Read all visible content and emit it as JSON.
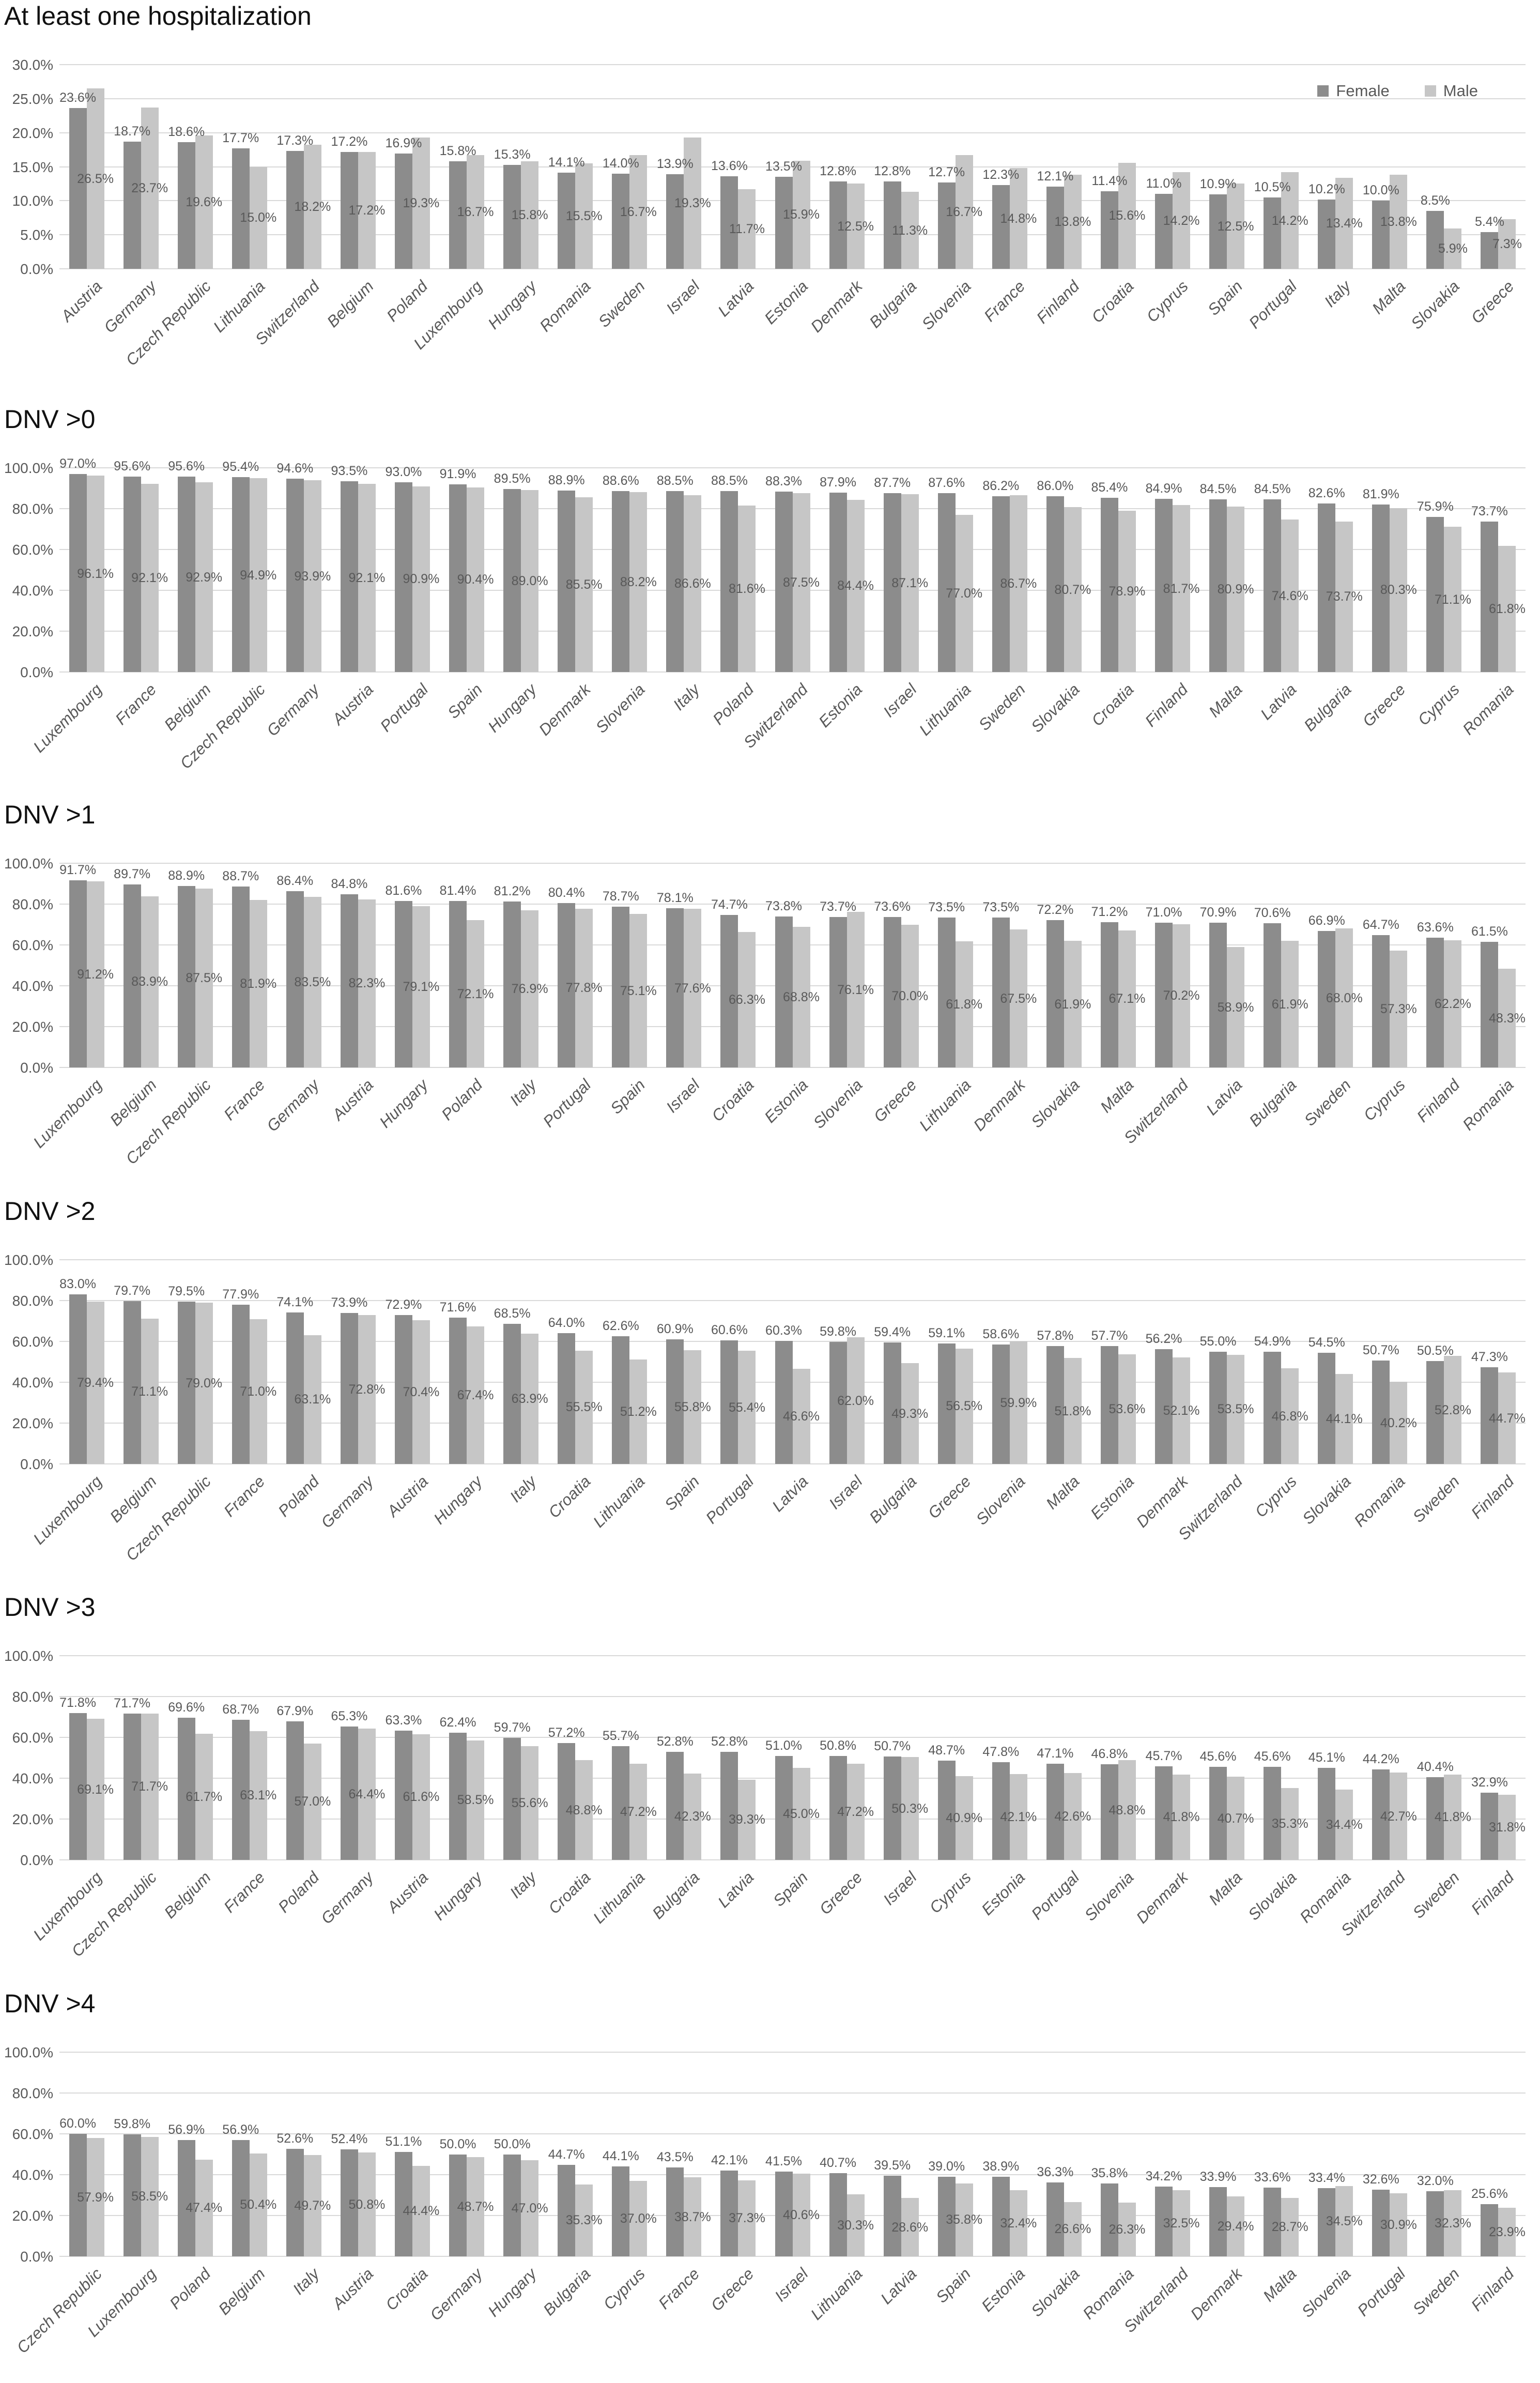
{
  "legend": {
    "female": "Female",
    "male": "Male"
  },
  "colors": {
    "female_bar": "#8c8c8c",
    "male_bar": "#c6c6c6",
    "gridline": "#d9d9d9",
    "axis_text": "#595959",
    "title_text": "#111111"
  },
  "chart_data": [
    {
      "type": "bar",
      "title": "At least one hospitalization",
      "ymax": 30,
      "ystep": 5,
      "yticks": [
        "0.0%",
        "5.0%",
        "10.0%",
        "15.0%",
        "20.0%",
        "25.0%",
        "30.0%"
      ],
      "legend_position": "top-right",
      "categories": [
        "Austria",
        "Germany",
        "Czech Republic",
        "Lithuania",
        "Switzerland",
        "Belgium",
        "Poland",
        "Luxembourg",
        "Hungary",
        "Romania",
        "Sweden",
        "Israel",
        "Latvia",
        "Estonia",
        "Denmark",
        "Bulgaria",
        "Slovenia",
        "France",
        "Finland",
        "Croatia",
        "Cyprus",
        "Spain",
        "Portugal",
        "Italy",
        "Malta",
        "Slovakia",
        "Greece"
      ],
      "series": [
        {
          "name": "Female",
          "values": [
            23.6,
            18.7,
            18.6,
            17.7,
            17.3,
            17.2,
            16.9,
            15.8,
            15.3,
            14.1,
            14.0,
            13.9,
            13.6,
            13.5,
            12.8,
            12.8,
            12.7,
            12.3,
            12.1,
            11.4,
            11.0,
            10.9,
            10.5,
            10.2,
            10.0,
            8.5,
            5.4
          ]
        },
        {
          "name": "Male",
          "values": [
            26.5,
            23.7,
            19.6,
            15.0,
            18.2,
            17.2,
            19.3,
            16.7,
            15.8,
            15.5,
            16.7,
            19.3,
            11.7,
            15.9,
            12.5,
            11.3,
            16.7,
            14.8,
            13.8,
            15.6,
            14.2,
            12.5,
            14.2,
            13.4,
            13.8,
            5.9,
            7.3
          ]
        }
      ]
    },
    {
      "type": "bar",
      "title": "DNV >0",
      "ymax": 100,
      "ystep": 20,
      "yticks": [
        "0.0%",
        "20.0%",
        "40.0%",
        "60.0%",
        "80.0%",
        "100.0%"
      ],
      "categories": [
        "Luxembourg",
        "France",
        "Belgium",
        "Czech Republic",
        "Germany",
        "Austria",
        "Portugal",
        "Spain",
        "Hungary",
        "Denmark",
        "Slovenia",
        "Italy",
        "Poland",
        "Switzerland",
        "Estonia",
        "Israel",
        "Lithuania",
        "Sweden",
        "Slovakia",
        "Croatia",
        "Finland",
        "Malta",
        "Latvia",
        "Bulgaria",
        "Greece",
        "Cyprus",
        "Romania"
      ],
      "series": [
        {
          "name": "Female",
          "values": [
            97.0,
            95.6,
            95.6,
            95.4,
            94.6,
            93.5,
            93.0,
            91.9,
            89.5,
            88.9,
            88.6,
            88.5,
            88.5,
            88.3,
            87.9,
            87.7,
            87.6,
            86.2,
            86.0,
            85.4,
            84.9,
            84.5,
            84.5,
            82.6,
            81.9,
            75.9,
            73.7
          ]
        },
        {
          "name": "Male",
          "values": [
            96.1,
            92.1,
            92.9,
            94.9,
            93.9,
            92.1,
            90.9,
            90.4,
            89.0,
            85.5,
            88.2,
            86.6,
            81.6,
            87.5,
            84.4,
            87.1,
            77.0,
            86.7,
            80.7,
            78.9,
            81.7,
            80.9,
            74.6,
            73.7,
            80.3,
            71.1,
            61.8
          ]
        }
      ]
    },
    {
      "type": "bar",
      "title": "DNV >1",
      "ymax": 100,
      "ystep": 20,
      "yticks": [
        "0.0%",
        "20.0%",
        "40.0%",
        "60.0%",
        "80.0%",
        "100.0%"
      ],
      "categories": [
        "Luxembourg",
        "Belgium",
        "Czech Republic",
        "France",
        "Germany",
        "Austria",
        "Hungary",
        "Poland",
        "Italy",
        "Portugal",
        "Spain",
        "Israel",
        "Croatia",
        "Estonia",
        "Slovenia",
        "Greece",
        "Lithuania",
        "Denmark",
        "Slovakia",
        "Malta",
        "Switzerland",
        "Latvia",
        "Bulgaria",
        "Sweden",
        "Cyprus",
        "Finland",
        "Romania"
      ],
      "series": [
        {
          "name": "Female",
          "values": [
            91.7,
            89.7,
            88.9,
            88.7,
            86.4,
            84.8,
            81.6,
            81.4,
            81.2,
            80.4,
            78.7,
            78.1,
            74.7,
            73.8,
            73.7,
            73.6,
            73.5,
            73.5,
            72.2,
            71.2,
            71.0,
            70.9,
            70.6,
            66.9,
            64.7,
            63.6,
            61.5
          ]
        },
        {
          "name": "Male",
          "values": [
            91.2,
            83.9,
            87.5,
            81.9,
            83.5,
            82.3,
            79.1,
            72.1,
            76.9,
            77.8,
            75.1,
            77.6,
            66.3,
            68.8,
            76.1,
            70.0,
            61.8,
            67.5,
            61.9,
            67.1,
            70.2,
            58.9,
            61.9,
            68.0,
            57.3,
            62.2,
            48.3
          ]
        }
      ]
    },
    {
      "type": "bar",
      "title": "DNV >2",
      "ymax": 100,
      "ystep": 20,
      "yticks": [
        "0.0%",
        "20.0%",
        "40.0%",
        "60.0%",
        "80.0%",
        "100.0%"
      ],
      "categories": [
        "Luxembourg",
        "Belgium",
        "Czech Republic",
        "France",
        "Poland",
        "Germany",
        "Austria",
        "Hungary",
        "Italy",
        "Croatia",
        "Lithuania",
        "Spain",
        "Portugal",
        "Latvia",
        "Israel",
        "Bulgaria",
        "Greece",
        "Slovenia",
        "Malta",
        "Estonia",
        "Denmark",
        "Switzerland",
        "Cyprus",
        "Slovakia",
        "Romania",
        "Sweden",
        "Finland"
      ],
      "series": [
        {
          "name": "Female",
          "values": [
            83.0,
            79.7,
            79.5,
            77.9,
            74.1,
            73.9,
            72.9,
            71.6,
            68.5,
            64.0,
            62.6,
            60.9,
            60.6,
            60.3,
            59.8,
            59.4,
            59.1,
            58.6,
            57.8,
            57.7,
            56.2,
            55.0,
            54.9,
            54.5,
            50.7,
            50.5,
            47.3
          ]
        },
        {
          "name": "Male",
          "values": [
            79.4,
            71.1,
            79.0,
            71.0,
            63.1,
            72.8,
            70.4,
            67.4,
            63.9,
            55.5,
            51.2,
            55.8,
            55.4,
            46.6,
            62.0,
            49.3,
            56.5,
            59.9,
            51.8,
            53.6,
            52.1,
            53.5,
            46.8,
            44.1,
            40.2,
            52.8,
            44.7
          ]
        }
      ]
    },
    {
      "type": "bar",
      "title": "DNV >3",
      "ymax": 100,
      "ystep": 20,
      "yticks": [
        "0.0%",
        "20.0%",
        "40.0%",
        "60.0%",
        "80.0%",
        "100.0%"
      ],
      "categories": [
        "Luxembourg",
        "Czech Republic",
        "Belgium",
        "France",
        "Poland",
        "Germany",
        "Austria",
        "Hungary",
        "Italy",
        "Croatia",
        "Lithuania",
        "Bulgaria",
        "Latvia",
        "Spain",
        "Greece",
        "Israel",
        "Cyprus",
        "Estonia",
        "Portugal",
        "Slovenia",
        "Denmark",
        "Malta",
        "Slovakia",
        "Romania",
        "Switzerland",
        "Sweden",
        "Finland"
      ],
      "series": [
        {
          "name": "Female",
          "values": [
            71.8,
            71.7,
            69.6,
            68.7,
            67.9,
            65.3,
            63.3,
            62.4,
            59.7,
            57.2,
            55.7,
            52.8,
            52.8,
            51.0,
            50.8,
            50.7,
            48.7,
            47.8,
            47.1,
            46.8,
            45.7,
            45.6,
            45.6,
            45.1,
            44.2,
            40.4,
            32.9
          ]
        },
        {
          "name": "Male",
          "values": [
            69.1,
            71.7,
            61.7,
            63.1,
            57.0,
            64.4,
            61.6,
            58.5,
            55.6,
            48.8,
            47.2,
            42.3,
            39.3,
            45.0,
            47.2,
            50.3,
            40.9,
            42.1,
            42.6,
            48.8,
            41.8,
            40.7,
            35.3,
            34.4,
            42.7,
            41.8,
            31.8
          ]
        }
      ]
    },
    {
      "type": "bar",
      "title": "DNV >4",
      "ymax": 100,
      "ystep": 20,
      "yticks": [
        "0.0%",
        "20.0%",
        "40.0%",
        "60.0%",
        "80.0%",
        "100.0%"
      ],
      "categories": [
        "Czech Republic",
        "Luxembourg",
        "Poland",
        "Belgium",
        "Italy",
        "Austria",
        "Croatia",
        "Germany",
        "Hungary",
        "Bulgaria",
        "Cyprus",
        "France",
        "Greece",
        "Israel",
        "Lithuania",
        "Latvia",
        "Spain",
        "Estonia",
        "Slovakia",
        "Romania",
        "Switzerland",
        "Denmark",
        "Malta",
        "Slovenia",
        "Portugal",
        "Sweden",
        "Finland"
      ],
      "series": [
        {
          "name": "Female",
          "values": [
            60.0,
            59.8,
            56.9,
            56.9,
            52.6,
            52.4,
            51.1,
            50.0,
            50.0,
            44.7,
            44.1,
            43.5,
            42.1,
            41.5,
            40.7,
            39.5,
            39.0,
            38.9,
            36.3,
            35.8,
            34.2,
            33.9,
            33.6,
            33.4,
            32.6,
            32.0,
            25.6
          ]
        },
        {
          "name": "Male",
          "values": [
            57.9,
            58.5,
            47.4,
            50.4,
            49.7,
            50.8,
            44.4,
            48.7,
            47.0,
            35.3,
            37.0,
            38.7,
            37.3,
            40.6,
            30.3,
            28.6,
            35.8,
            32.4,
            26.6,
            26.3,
            32.5,
            29.4,
            28.7,
            34.5,
            30.9,
            32.3,
            23.9
          ]
        }
      ]
    }
  ]
}
